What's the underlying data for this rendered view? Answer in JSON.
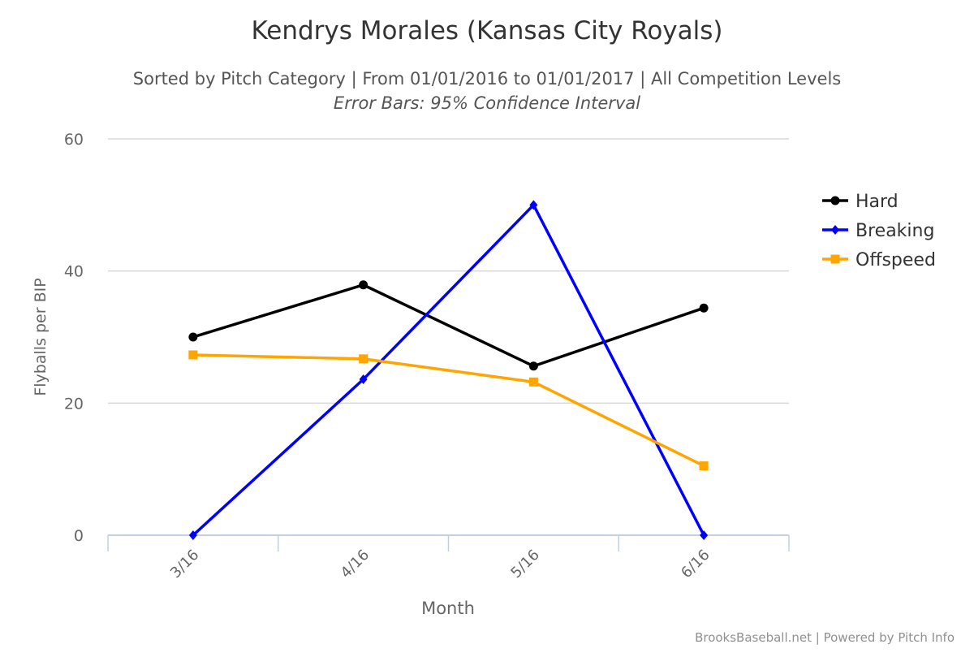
{
  "chart_data": {
    "type": "line",
    "title": "Kendrys Morales (Kansas City Royals)",
    "subtitle": "Sorted by Pitch Category | From 01/01/2016 to 01/01/2017 | All Competition Levels",
    "subtitle2": "Error Bars: 95% Confidence Interval",
    "xlabel": "Month",
    "ylabel": "Flyballs per BIP",
    "categories": [
      "3/16",
      "4/16",
      "5/16",
      "6/16"
    ],
    "ylim": [
      0,
      60
    ],
    "yticks": [
      0,
      20,
      40,
      60
    ],
    "grid": true,
    "legend_position": "right",
    "series": [
      {
        "name": "Hard",
        "color": "#000000",
        "marker": "circle",
        "values": [
          30.0,
          37.9,
          25.6,
          34.4
        ]
      },
      {
        "name": "Breaking",
        "color": "#0000ff",
        "marker": "diamond",
        "values": [
          0,
          23.6,
          50.0,
          0
        ]
      },
      {
        "name": "Offspeed",
        "color": "#ffa500",
        "marker": "square",
        "values": [
          27.3,
          26.7,
          23.2,
          10.5
        ]
      }
    ],
    "credits": "BrooksBaseball.net | Powered by Pitch Info"
  }
}
